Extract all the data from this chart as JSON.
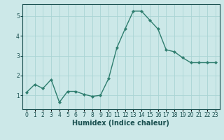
{
  "x": [
    0,
    1,
    2,
    3,
    4,
    5,
    6,
    7,
    8,
    9,
    10,
    11,
    12,
    13,
    14,
    15,
    16,
    17,
    18,
    19,
    20,
    21,
    22,
    23
  ],
  "y": [
    1.15,
    1.55,
    1.35,
    1.8,
    0.65,
    1.2,
    1.2,
    1.05,
    0.95,
    1.0,
    1.85,
    3.4,
    4.35,
    5.25,
    5.25,
    4.8,
    4.35,
    3.3,
    3.2,
    2.9,
    2.65,
    2.65,
    2.65,
    2.65
  ],
  "line_color": "#2e7d6e",
  "marker": "D",
  "marker_size": 2.2,
  "line_width": 1.0,
  "bg_color": "#cce8e8",
  "grid_color": "#aad4d4",
  "xlabel": "Humidex (Indice chaleur)",
  "xlabel_fontsize": 7.0,
  "tick_fontsize": 5.5,
  "tick_label_color": "#1a5050",
  "axis_color": "#1a5050",
  "ylim": [
    0.3,
    5.6
  ],
  "yticks": [
    1,
    2,
    3,
    4,
    5
  ],
  "xlim": [
    -0.5,
    23.5
  ]
}
